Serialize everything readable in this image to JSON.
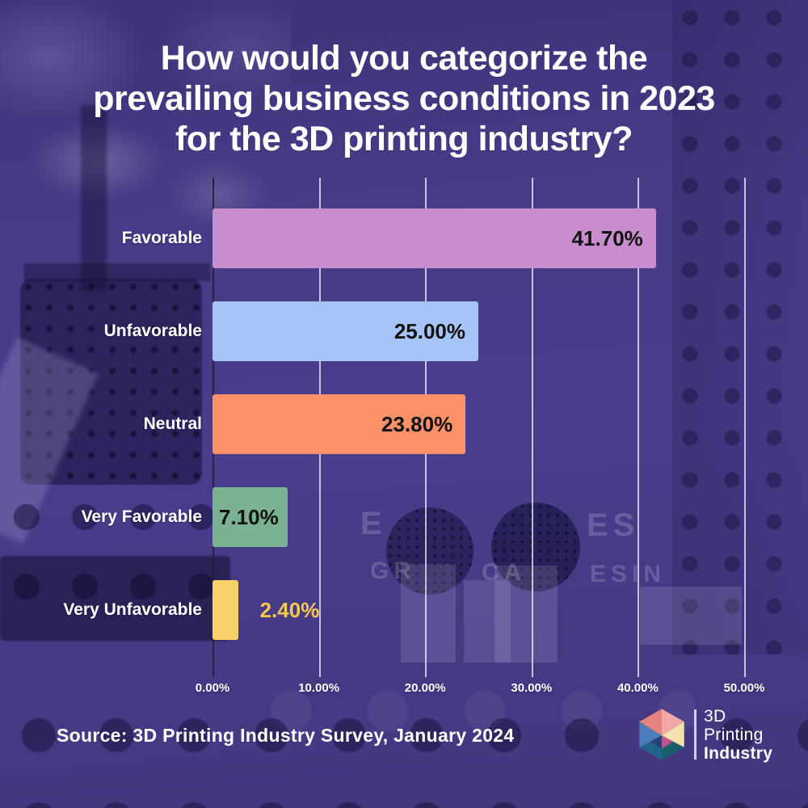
{
  "title": {
    "text": "How would you categorize the\nprevailing business conditions in 2023\nfor the 3D printing industry?"
  },
  "chart_data": {
    "type": "bar",
    "orientation": "horizontal",
    "title": "How would you categorize the prevailing business conditions in 2023 for the 3D printing industry?",
    "categories": [
      "Favorable",
      "Unfavorable",
      "Neutral",
      "Very Favorable",
      "Very Unfavorable"
    ],
    "values": [
      41.7,
      25.0,
      23.8,
      7.1,
      2.4
    ],
    "xlim": [
      0,
      50
    ],
    "grid": true,
    "legend": false,
    "x_ticks": [
      "0.00%",
      "10.00%",
      "20.00%",
      "30.00%",
      "40.00%",
      "50.00%"
    ],
    "rows": [
      {
        "label": "Favorable",
        "value": 41.7,
        "value_label": "41.70%",
        "color": "#c98ccd",
        "value_position": "inside-right",
        "value_color": "#121212"
      },
      {
        "label": "Unfavorable",
        "value": 25.0,
        "value_label": "25.00%",
        "color": "#a6c4f6",
        "value_position": "inside-right",
        "value_color": "#121212"
      },
      {
        "label": "Neutral",
        "value": 23.8,
        "value_label": "23.80%",
        "color": "#fb9166",
        "value_position": "inside-right",
        "value_color": "#121212"
      },
      {
        "label": "Very Favorable",
        "value": 7.1,
        "value_label": "7.10%",
        "color": "#7bb293",
        "value_position": "inside-left",
        "value_color": "#121212"
      },
      {
        "label": "Very Unfavorable",
        "value": 2.4,
        "value_label": "2.40%",
        "color": "#f9d169",
        "value_position": "outside",
        "value_color": "#f6c851"
      }
    ]
  },
  "source": {
    "text": "Source: 3D Printing Industry Survey, January 2024"
  },
  "logo": {
    "line1": "3D",
    "line2": "Printing",
    "line3": "Industry",
    "cube_colors": [
      "#e6837d",
      "#f0a7a5",
      "#f3e2b0",
      "#186069",
      "#22658a",
      "#4d7cbc",
      "#c74f8e",
      "#2a3f78"
    ]
  },
  "background": {
    "base_color": "#473c88",
    "photo_fragments": {
      "frag1": "E",
      "frag2": "ES",
      "frag3": "GR",
      "frag4": "CA",
      "frag5": "ESIN"
    }
  }
}
